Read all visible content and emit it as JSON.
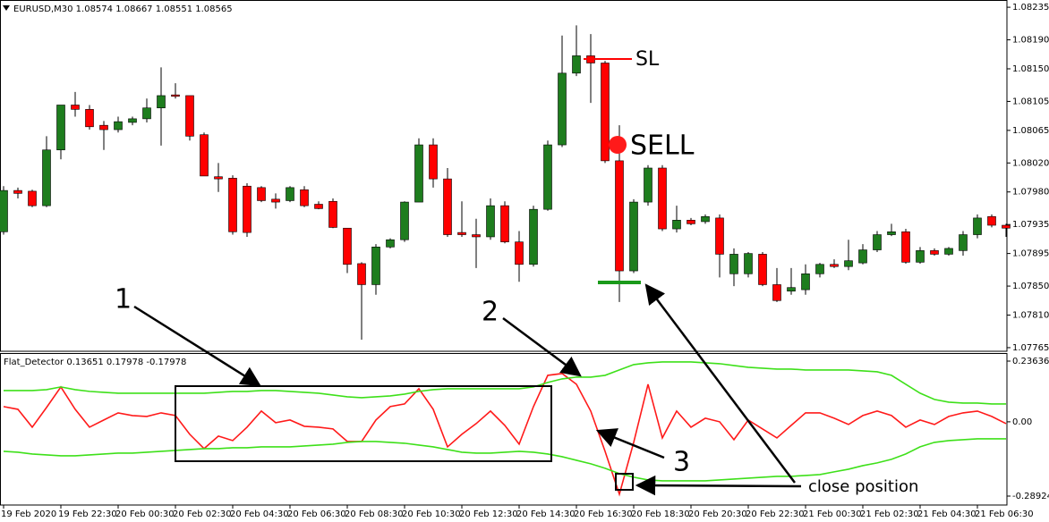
{
  "chart_data": [
    {
      "type": "candlestick",
      "title": "EURUSD,M30  1.08574 1.08667 1.08551 1.08565",
      "categories": [
        "19 Feb 2020",
        null,
        null,
        null,
        "19 Feb 22:30",
        null,
        null,
        null,
        "20 Feb 00:30",
        null,
        null,
        null,
        "20 Feb 02:30",
        null,
        null,
        null,
        "20 Feb 04:30",
        null,
        null,
        null,
        "20 Feb 06:30",
        null,
        null,
        null,
        "20 Feb 08:30",
        null,
        null,
        null,
        "20 Feb 10:30",
        null,
        null,
        null,
        "20 Feb 12:30",
        null,
        null,
        null,
        "20 Feb 14:30",
        null,
        null,
        null,
        "20 Feb 16:30",
        null,
        null,
        null,
        "20 Feb 18:30",
        null,
        null,
        null,
        "20 Feb 20:30",
        null,
        null,
        null,
        "20 Feb 22:30",
        null,
        null,
        null,
        "21 Feb 00:30",
        null,
        null,
        null,
        "21 Feb 02:30",
        null,
        null,
        null,
        "21 Feb 04:30",
        null,
        null,
        null,
        "21 Feb 06:30",
        null,
        null
      ],
      "open": [
        1.07925,
        1.07982,
        1.07981,
        1.07961,
        1.08038,
        1.081,
        1.08094,
        1.08072,
        1.08066,
        1.08076,
        1.08081,
        1.08096,
        1.08114,
        1.08113,
        1.08059,
        1.08001,
        1.07999,
        1.07988,
        1.07986,
        1.0797,
        1.07968,
        1.07983,
        1.07963,
        1.07967,
        1.0793,
        1.07881,
        1.07852,
        1.07904,
        1.07914,
        1.07966,
        1.08045,
        1.07998,
        1.07924,
        1.07921,
        1.07918,
        1.07961,
        1.07911,
        1.0788,
        1.07956,
        1.08045,
        1.08144,
        1.08168,
        1.08158,
        1.08023,
        1.07871,
        1.07966,
        1.08013,
        1.07929,
        1.07941,
        1.07939,
        1.07944,
        1.07867,
        1.07867,
        1.07894,
        1.07852,
        1.07843,
        1.07845,
        1.07867,
        1.0788,
        1.07877,
        1.07882,
        1.079,
        1.07921,
        1.07925,
        1.07883,
        1.07899,
        1.07894,
        1.07899,
        1.07921,
        1.07946,
        1.07934
      ],
      "high": [
        1.07988,
        1.07986,
        1.07983,
        1.08057,
        1.081,
        1.08118,
        1.081,
        1.08078,
        1.08084,
        1.08084,
        1.08109,
        1.08152,
        1.0813,
        1.08113,
        1.08062,
        1.0802,
        1.08003,
        1.07992,
        1.07988,
        1.07978,
        1.07988,
        1.07988,
        1.07967,
        1.07971,
        1.0793,
        1.07883,
        1.07908,
        1.07916,
        1.07967,
        1.08054,
        1.08054,
        1.08013,
        1.07967,
        1.07943,
        1.07971,
        1.07967,
        1.07926,
        1.07961,
        1.08051,
        1.08196,
        1.0821,
        1.08198,
        1.08161,
        1.08072,
        1.0797,
        1.08017,
        1.08017,
        1.07961,
        1.07944,
        1.07949,
        1.07949,
        1.07902,
        1.07897,
        1.07897,
        1.07875,
        1.07875,
        1.0788,
        1.07882,
        1.07887,
        1.07914,
        1.07908,
        1.07926,
        1.07936,
        1.07929,
        1.07904,
        1.07902,
        1.07904,
        1.07926,
        1.07949,
        1.07949,
        1.07936
      ],
      "low": [
        1.07921,
        1.07971,
        1.07959,
        1.07959,
        1.08025,
        1.08084,
        1.08066,
        1.08038,
        1.08062,
        1.08072,
        1.08076,
        1.08044,
        1.08109,
        1.08051,
        1.08002,
        1.0798,
        1.07921,
        1.07918,
        1.07966,
        1.07957,
        1.07966,
        1.07959,
        1.07956,
        1.0793,
        1.07868,
        1.07776,
        1.07838,
        1.07902,
        1.07911,
        1.07966,
        1.07986,
        1.07918,
        1.07918,
        1.07875,
        1.07914,
        1.07909,
        1.07856,
        1.07877,
        1.07954,
        1.08042,
        1.0814,
        1.08103,
        1.0802,
        1.07828,
        1.07868,
        1.07961,
        1.07926,
        1.07924,
        1.07934,
        1.07936,
        1.07862,
        1.0785,
        1.07862,
        1.0785,
        1.07828,
        1.07838,
        1.07838,
        1.07862,
        1.07875,
        1.07872,
        1.0788,
        1.07897,
        1.07919,
        1.07881,
        1.07881,
        1.07892,
        1.07892,
        1.07892,
        1.07916,
        1.07931,
        1.07918
      ],
      "close": [
        1.07982,
        1.07978,
        1.07961,
        1.08038,
        1.081,
        1.08094,
        1.0807,
        1.08066,
        1.08077,
        1.08081,
        1.08096,
        1.08113,
        1.08112,
        1.08057,
        1.08002,
        1.07998,
        1.07925,
        1.07924,
        1.07968,
        1.07966,
        1.07986,
        1.07961,
        1.07957,
        1.07931,
        1.0788,
        1.07852,
        1.07904,
        1.07914,
        1.07966,
        1.08045,
        1.07998,
        1.07921,
        1.07921,
        1.07918,
        1.07961,
        1.07911,
        1.0788,
        1.07956,
        1.08045,
        1.08144,
        1.08168,
        1.08158,
        1.08023,
        1.07871,
        1.07966,
        1.08013,
        1.07929,
        1.07941,
        1.07936,
        1.07946,
        1.07894,
        1.07894,
        1.07895,
        1.07852,
        1.0783,
        1.07848,
        1.07867,
        1.0788,
        1.07877,
        1.07885,
        1.079,
        1.07921,
        1.07925,
        1.07883,
        1.07899,
        1.07894,
        1.07902,
        1.07921,
        1.07944,
        1.07934,
        1.0793
      ],
      "up_color": "#1e7d1e",
      "down_color": "#ff0000",
      "ylim": [
        1.0776,
        1.08245
      ],
      "yticks": [
        1.08235,
        {
          "value": 1.0819,
          "label": "1.08190"
        },
        {
          "value": 1.0815,
          "label": "1.08150"
        },
        1.08105,
        1.08065,
        {
          "value": 1.0802,
          "label": "1.08020"
        },
        {
          "value": 1.0798,
          "label": "1.07980"
        },
        1.07935,
        1.07895,
        {
          "value": 1.0785,
          "label": "1.07850"
        },
        {
          "value": 1.0781,
          "label": "1.07810"
        },
        1.07765
      ],
      "annotations": {
        "sl": "SL",
        "sell": "SELL",
        "label_1": "1",
        "label_2": "2",
        "label_3": "3",
        "close_position": "close position"
      }
    },
    {
      "type": "line",
      "title": "Flat_Detector 0.13651 0.17978 -0.17978",
      "series": [
        {
          "color": "#ff1a1a",
          "values": [
            0.0592,
            0.0487,
            -0.0209,
            0.0557,
            0.1358,
            0.0487,
            -0.0209,
            0.007,
            0.0348,
            0.0244,
            0.0209,
            0.0348,
            0.0244,
            -0.0487,
            -0.1044,
            -0.0557,
            -0.0731,
            -0.0209,
            0.0418,
            -0.0035,
            0.007,
            -0.0174,
            -0.0209,
            -0.0278,
            -0.0766,
            -0.0766,
            0.007,
            0.0592,
            0.0696,
            0.1288,
            0.0487,
            -0.0975,
            -0.0487,
            -0.007,
            0.0418,
            -0.0139,
            -0.087,
            0.0592,
            0.181,
            0.188,
            0.1462,
            0.0418,
            -0.1149,
            -0.282,
            -0.0801,
            0.1462,
            -0.0627,
            0.0418,
            -0.0209,
            0.0139,
            0,
            -0.0696,
            0.007,
            -0.0278,
            -0.0627,
            -0.0139,
            0.0348,
            0.0348,
            0.0139,
            -0.0104,
            0.0244,
            0.0418,
            0.0244,
            -0.0209,
            0.007,
            -0.0104,
            0.0209,
            0.0348,
            0.0418,
            0.0209,
            -0.007
          ]
        },
        {
          "color": "#3ee01a",
          "values": [
            0.1218,
            0.1218,
            0.1218,
            0.1253,
            0.1358,
            0.1253,
            0.1184,
            0.1149,
            0.1114,
            0.1114,
            0.1114,
            0.1114,
            0.1114,
            0.1114,
            0.1114,
            0.1149,
            0.1184,
            0.1184,
            0.1218,
            0.1218,
            0.1184,
            0.1149,
            0.1114,
            0.1044,
            0.0975,
            0.094,
            0.0975,
            0.1009,
            0.1079,
            0.1184,
            0.1253,
            0.1288,
            0.1288,
            0.1288,
            0.1288,
            0.1288,
            0.1288,
            0.1358,
            0.1532,
            0.1671,
            0.1741,
            0.1741,
            0.181,
            0.2019,
            0.2228,
            0.2297,
            0.2332,
            0.2332,
            0.2332,
            0.2297,
            0.2263,
            0.2193,
            0.2123,
            0.2089,
            0.2054,
            0.2054,
            0.2019,
            0.2019,
            0.2019,
            0.2019,
            0.1984,
            0.1949,
            0.181,
            0.1462,
            0.1114,
            0.087,
            0.0766,
            0.0731,
            0.0731,
            0.0696,
            0.0696
          ]
        },
        {
          "color": "#3ee01a",
          "values": [
            -0.1149,
            -0.1184,
            -0.1253,
            -0.1288,
            -0.1323,
            -0.1323,
            -0.1288,
            -0.1253,
            -0.1218,
            -0.1218,
            -0.1184,
            -0.1149,
            -0.1114,
            -0.1079,
            -0.1044,
            -0.1044,
            -0.1009,
            -0.1009,
            -0.0975,
            -0.0975,
            -0.0975,
            -0.094,
            -0.0905,
            -0.087,
            -0.0801,
            -0.0766,
            -0.0766,
            -0.0801,
            -0.0835,
            -0.0905,
            -0.0975,
            -0.1079,
            -0.1184,
            -0.1218,
            -0.1218,
            -0.1184,
            -0.1149,
            -0.1184,
            -0.1253,
            -0.1358,
            -0.1497,
            -0.1636,
            -0.181,
            -0.2019,
            -0.2158,
            -0.2263,
            -0.2297,
            -0.2297,
            -0.2297,
            -0.2297,
            -0.2263,
            -0.2228,
            -0.2193,
            -0.2158,
            -0.2123,
            -0.2123,
            -0.2089,
            -0.2054,
            -0.1949,
            -0.1845,
            -0.1706,
            -0.1601,
            -0.1462,
            -0.1253,
            -0.0975,
            -0.0801,
            -0.0731,
            -0.0696,
            -0.0661,
            -0.0661,
            -0.0661
          ]
        }
      ],
      "ylim": [
        -0.32405,
        0.26421
      ],
      "yticks": [
        0.23636,
        {
          "value": 0,
          "label": "0.00"
        },
        -0.28924
      ]
    }
  ]
}
